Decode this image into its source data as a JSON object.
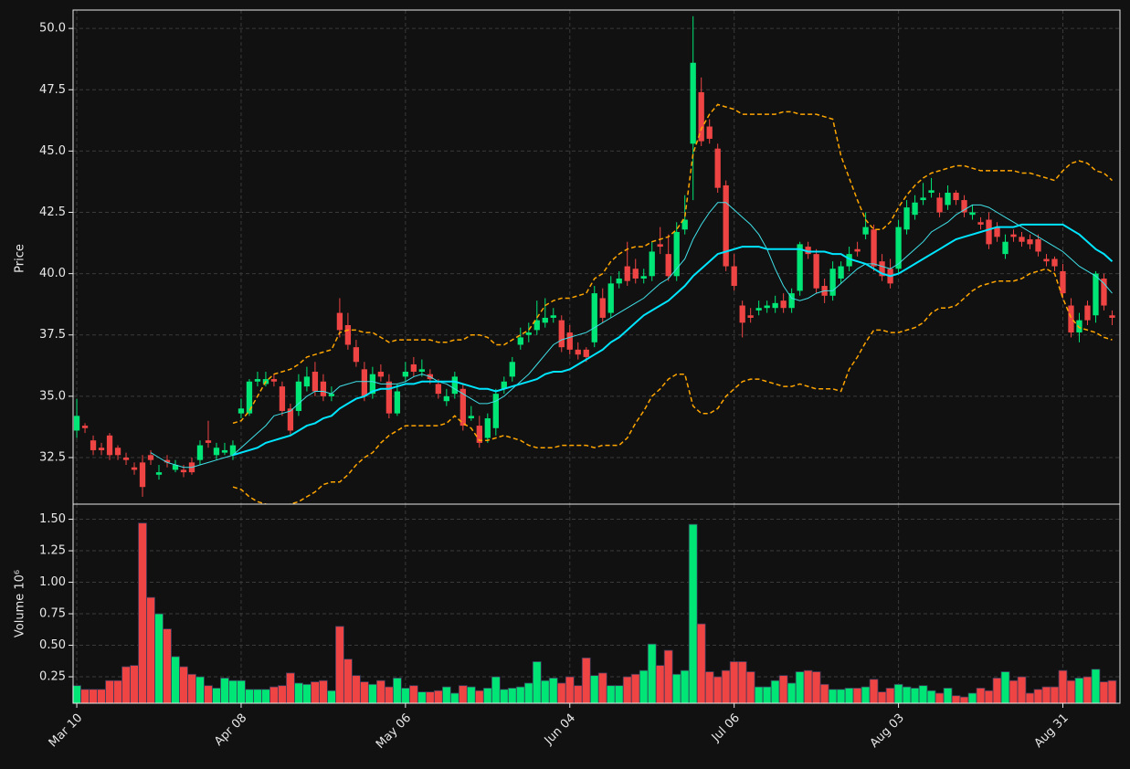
{
  "chart_data": {
    "type": "candlestick",
    "ylabel": "Price",
    "volume_label": "Volume  10⁶",
    "up_color": "#00e676",
    "down_color": "#ef4444",
    "grid": true,
    "categories": [
      "Mar 10",
      null,
      null,
      null,
      null,
      null,
      null,
      null,
      null,
      null,
      null,
      null,
      null,
      null,
      null,
      null,
      null,
      null,
      null,
      null,
      "Apr 08",
      null,
      null,
      null,
      null,
      null,
      null,
      null,
      null,
      null,
      null,
      null,
      null,
      null,
      null,
      null,
      null,
      null,
      null,
      null,
      "May 06",
      null,
      null,
      null,
      null,
      null,
      null,
      null,
      null,
      null,
      null,
      null,
      null,
      null,
      null,
      null,
      null,
      null,
      null,
      null,
      "Jun 04",
      null,
      null,
      null,
      null,
      null,
      null,
      null,
      null,
      null,
      null,
      null,
      null,
      null,
      null,
      null,
      null,
      null,
      null,
      null,
      "Jul 06",
      null,
      null,
      null,
      null,
      null,
      null,
      null,
      null,
      null,
      null,
      null,
      null,
      null,
      null,
      null,
      null,
      null,
      null,
      null,
      "Aug 03",
      null,
      null,
      null,
      null,
      null,
      null,
      null,
      null,
      null,
      null,
      null,
      null,
      null,
      null,
      null,
      null,
      null,
      null,
      null,
      "Aug 31",
      null,
      null,
      null,
      null,
      null,
      null
    ],
    "open": [
      33.6,
      33.8,
      33.2,
      32.9,
      33.4,
      32.9,
      32.5,
      32.1,
      32.3,
      32.6,
      31.8,
      32.4,
      32.0,
      32.0,
      32.3,
      32.4,
      33.2,
      32.6,
      32.7,
      32.6,
      34.3,
      34.3,
      35.6,
      35.5,
      35.7,
      35.4,
      34.5,
      34.4,
      35.4,
      36.0,
      35.6,
      35.0,
      38.4,
      37.9,
      37.0,
      36.1,
      35.1,
      36.0,
      35.6,
      34.3,
      35.8,
      36.3,
      36.0,
      35.9,
      35.5,
      34.8,
      35.1,
      35.3,
      34.1,
      33.8,
      33.3,
      33.7,
      35.3,
      35.8,
      37.1,
      37.5,
      37.7,
      38.0,
      38.2,
      38.1,
      37.6,
      36.9,
      36.9,
      37.2,
      39.0,
      38.4,
      39.6,
      40.3,
      40.2,
      39.8,
      39.9,
      41.2,
      40.8,
      39.9,
      41.8,
      45.3,
      47.4,
      46.0,
      45.1,
      43.6,
      40.3,
      38.7,
      38.3,
      38.5,
      38.6,
      38.6,
      38.9,
      38.6,
      39.3,
      41.1,
      40.8,
      39.5,
      39.1,
      39.8,
      40.3,
      41.0,
      41.6,
      41.8,
      40.5,
      40.2,
      40.2,
      41.8,
      42.4,
      43.0,
      43.3,
      43.1,
      42.8,
      43.3,
      43.0,
      42.4,
      42.1,
      42.2,
      41.9,
      40.8,
      41.6,
      41.5,
      41.4,
      41.4,
      40.6,
      40.6,
      40.1,
      38.7,
      37.6,
      38.7,
      38.3,
      39.8,
      38.3
    ],
    "high": [
      34.9,
      33.9,
      33.4,
      33.1,
      33.5,
      33.0,
      32.7,
      32.3,
      32.6,
      32.8,
      32.2,
      32.6,
      32.4,
      32.2,
      32.5,
      33.2,
      34.0,
      33.1,
      33.1,
      33.2,
      34.9,
      35.7,
      36.0,
      36.0,
      35.9,
      35.6,
      34.7,
      35.9,
      36.2,
      36.4,
      35.9,
      35.4,
      39.0,
      38.4,
      37.3,
      36.4,
      36.2,
      36.3,
      35.9,
      35.5,
      36.4,
      36.6,
      36.5,
      36.1,
      35.7,
      35.3,
      36.0,
      35.5,
      34.6,
      34.2,
      34.3,
      35.3,
      35.8,
      36.6,
      37.8,
      38.0,
      38.9,
      39.0,
      38.6,
      38.3,
      37.9,
      37.2,
      37.0,
      39.5,
      39.4,
      39.9,
      40.1,
      41.3,
      40.6,
      40.2,
      41.3,
      41.9,
      41.6,
      42.1,
      43.2,
      50.5,
      48.0,
      46.3,
      45.3,
      43.8,
      40.8,
      38.9,
      38.6,
      38.9,
      38.9,
      39.1,
      39.2,
      39.4,
      41.3,
      41.3,
      41.0,
      39.8,
      40.5,
      40.5,
      41.1,
      41.3,
      42.5,
      42.0,
      40.8,
      40.6,
      42.2,
      43.0,
      43.2,
      43.7,
      43.9,
      43.3,
      43.6,
      43.4,
      43.2,
      42.8,
      42.3,
      42.5,
      42.1,
      41.6,
      41.8,
      41.7,
      41.6,
      41.6,
      40.8,
      40.7,
      40.4,
      39.0,
      38.4,
      38.9,
      40.1,
      40.0,
      38.5
    ],
    "low": [
      33.3,
      33.5,
      32.6,
      32.6,
      32.4,
      32.4,
      32.2,
      31.8,
      30.9,
      32.2,
      31.6,
      32.1,
      31.9,
      31.7,
      31.8,
      32.2,
      32.9,
      32.4,
      32.6,
      32.4,
      34.1,
      34.2,
      35.4,
      35.4,
      35.4,
      34.2,
      33.4,
      34.2,
      35.2,
      35.0,
      34.8,
      34.8,
      37.4,
      36.9,
      36.2,
      34.8,
      34.9,
      35.6,
      34.1,
      34.2,
      35.6,
      35.8,
      35.8,
      35.5,
      34.9,
      34.6,
      34.9,
      33.6,
      34.0,
      32.9,
      33.1,
      33.4,
      35.1,
      35.6,
      36.9,
      37.2,
      37.5,
      37.8,
      38.0,
      36.8,
      36.7,
      36.5,
      36.4,
      37.0,
      38.0,
      38.2,
      39.4,
      39.5,
      39.6,
      39.6,
      39.7,
      40.8,
      39.7,
      39.7,
      41.6,
      43.0,
      45.2,
      45.3,
      43.3,
      40.1,
      39.3,
      37.4,
      38.0,
      38.3,
      38.4,
      38.4,
      38.4,
      38.4,
      39.1,
      40.6,
      39.2,
      38.8,
      38.9,
      39.6,
      40.1,
      40.7,
      41.4,
      40.1,
      39.7,
      39.4,
      40.0,
      41.6,
      42.2,
      42.8,
      43.1,
      42.3,
      42.6,
      42.8,
      42.3,
      42.2,
      41.8,
      41.0,
      41.3,
      40.6,
      41.3,
      41.1,
      41.0,
      40.7,
      40.3,
      40.1,
      39.0,
      37.4,
      37.2,
      37.9,
      38.0,
      38.5,
      37.9
    ],
    "close": [
      34.2,
      33.7,
      32.8,
      32.8,
      32.6,
      32.6,
      32.4,
      32.0,
      31.3,
      32.4,
      31.9,
      32.3,
      32.2,
      31.9,
      31.9,
      33.0,
      33.1,
      32.9,
      32.8,
      33.0,
      34.5,
      35.6,
      35.7,
      35.7,
      35.6,
      34.4,
      33.6,
      35.6,
      35.8,
      35.2,
      35.0,
      35.1,
      37.7,
      37.1,
      36.4,
      35.0,
      35.9,
      35.8,
      34.3,
      35.2,
      36.0,
      36.0,
      36.1,
      35.7,
      35.1,
      35.0,
      35.8,
      33.8,
      34.2,
      33.1,
      34.1,
      35.1,
      35.6,
      36.4,
      37.4,
      37.6,
      38.1,
      38.2,
      38.3,
      37.0,
      36.9,
      36.7,
      36.6,
      39.2,
      38.2,
      39.6,
      39.8,
      39.7,
      39.8,
      39.9,
      40.9,
      41.1,
      39.9,
      41.7,
      42.2,
      48.6,
      45.4,
      45.5,
      43.5,
      40.3,
      39.5,
      38.0,
      38.2,
      38.6,
      38.7,
      38.8,
      38.6,
      39.2,
      41.2,
      40.8,
      39.4,
      39.1,
      40.2,
      40.3,
      40.8,
      40.9,
      41.9,
      40.3,
      39.9,
      39.6,
      41.9,
      42.7,
      42.9,
      43.1,
      43.4,
      42.5,
      43.3,
      43.0,
      42.5,
      42.5,
      42.0,
      41.2,
      41.5,
      41.3,
      41.5,
      41.3,
      41.2,
      40.9,
      40.5,
      40.3,
      39.2,
      37.6,
      38.1,
      38.1,
      40.0,
      38.7,
      38.2
    ],
    "volume": [
      0.18,
      0.15,
      0.15,
      0.15,
      0.22,
      0.22,
      0.33,
      0.34,
      1.47,
      0.88,
      0.75,
      0.63,
      0.41,
      0.33,
      0.27,
      0.25,
      0.18,
      0.16,
      0.24,
      0.22,
      0.22,
      0.15,
      0.15,
      0.15,
      0.17,
      0.18,
      0.28,
      0.2,
      0.19,
      0.21,
      0.22,
      0.14,
      0.65,
      0.39,
      0.26,
      0.21,
      0.19,
      0.22,
      0.17,
      0.24,
      0.16,
      0.18,
      0.13,
      0.13,
      0.14,
      0.17,
      0.12,
      0.18,
      0.17,
      0.14,
      0.16,
      0.25,
      0.15,
      0.16,
      0.17,
      0.2,
      0.37,
      0.22,
      0.24,
      0.2,
      0.25,
      0.18,
      0.4,
      0.26,
      0.28,
      0.18,
      0.18,
      0.25,
      0.27,
      0.3,
      0.51,
      0.34,
      0.46,
      0.27,
      0.3,
      1.46,
      0.67,
      0.29,
      0.25,
      0.3,
      0.37,
      0.37,
      0.29,
      0.17,
      0.17,
      0.22,
      0.26,
      0.2,
      0.29,
      0.3,
      0.29,
      0.19,
      0.15,
      0.15,
      0.16,
      0.16,
      0.17,
      0.23,
      0.13,
      0.16,
      0.19,
      0.17,
      0.16,
      0.18,
      0.14,
      0.12,
      0.16,
      0.1,
      0.09,
      0.12,
      0.16,
      0.14,
      0.24,
      0.29,
      0.22,
      0.25,
      0.12,
      0.15,
      0.17,
      0.17,
      0.3,
      0.22,
      0.24,
      0.25,
      0.31,
      0.21,
      0.22
    ],
    "ma_lines": [
      {
        "color": "#40e0e8",
        "width": 1,
        "dash": false,
        "values": [
          null,
          null,
          null,
          null,
          null,
          null,
          null,
          null,
          null,
          32.7,
          32.5,
          32.3,
          32.2,
          32.1,
          32.1,
          32.2,
          32.3,
          32.4,
          32.5,
          32.6,
          32.9,
          33.2,
          33.5,
          33.8,
          34.2,
          34.3,
          34.4,
          34.7,
          35.0,
          35.2,
          35.2,
          35.1,
          35.4,
          35.5,
          35.6,
          35.6,
          35.6,
          35.5,
          35.5,
          35.5,
          35.6,
          35.8,
          35.9,
          35.8,
          35.6,
          35.5,
          35.3,
          35.1,
          34.9,
          34.7,
          34.7,
          34.8,
          35.0,
          35.3,
          35.6,
          35.9,
          36.3,
          36.7,
          37.1,
          37.3,
          37.4,
          37.5,
          37.6,
          37.8,
          38.0,
          38.2,
          38.4,
          38.6,
          38.8,
          39.0,
          39.3,
          39.6,
          39.8,
          40.2,
          40.6,
          41.4,
          42.0,
          42.5,
          42.9,
          42.9,
          42.6,
          42.3,
          42.0,
          41.6,
          41.0,
          40.2,
          39.5,
          39.0,
          38.9,
          39.0,
          39.2,
          39.3,
          39.3,
          39.6,
          39.9,
          40.2,
          40.4,
          40.4,
          40.3,
          40.2,
          40.4,
          40.7,
          41.0,
          41.3,
          41.7,
          41.9,
          42.1,
          42.4,
          42.6,
          42.8,
          42.8,
          42.7,
          42.5,
          42.3,
          42.1,
          41.9,
          41.7,
          41.5,
          41.3,
          41.1,
          40.9,
          40.6,
          40.3,
          40.1,
          39.9,
          39.6,
          39.2
        ]
      },
      {
        "color": "#00e5ff",
        "width": 2,
        "dash": false,
        "values": [
          null,
          null,
          null,
          null,
          null,
          null,
          null,
          null,
          null,
          null,
          null,
          null,
          null,
          null,
          null,
          null,
          null,
          null,
          null,
          32.6,
          32.7,
          32.8,
          32.9,
          33.1,
          33.2,
          33.3,
          33.4,
          33.6,
          33.8,
          33.9,
          34.1,
          34.2,
          34.5,
          34.7,
          34.9,
          35.0,
          35.2,
          35.3,
          35.3,
          35.4,
          35.5,
          35.5,
          35.6,
          35.6,
          35.6,
          35.6,
          35.6,
          35.5,
          35.4,
          35.3,
          35.3,
          35.2,
          35.3,
          35.4,
          35.5,
          35.6,
          35.7,
          35.9,
          36.0,
          36.0,
          36.1,
          36.3,
          36.5,
          36.7,
          36.9,
          37.2,
          37.4,
          37.7,
          38.0,
          38.3,
          38.5,
          38.7,
          38.9,
          39.2,
          39.5,
          39.9,
          40.2,
          40.5,
          40.8,
          40.9,
          41.0,
          41.1,
          41.1,
          41.1,
          41.0,
          41.0,
          41.0,
          41.0,
          41.0,
          40.9,
          40.9,
          40.9,
          40.8,
          40.8,
          40.6,
          40.5,
          40.4,
          40.2,
          40.0,
          39.9,
          40.0,
          40.2,
          40.4,
          40.6,
          40.8,
          41.0,
          41.2,
          41.4,
          41.5,
          41.6,
          41.7,
          41.8,
          41.9,
          41.9,
          41.9,
          42.0,
          42.0,
          42.0,
          42.0,
          42.0,
          42.0,
          41.8,
          41.6,
          41.3,
          41.0,
          40.8,
          40.5
        ]
      },
      {
        "color": "#ffa500",
        "width": 1.5,
        "dash": true,
        "values": [
          null,
          null,
          null,
          null,
          null,
          null,
          null,
          null,
          null,
          null,
          null,
          null,
          null,
          null,
          null,
          null,
          null,
          null,
          null,
          33.9,
          34.0,
          34.4,
          35.0,
          35.6,
          35.9,
          36.0,
          36.1,
          36.3,
          36.6,
          36.7,
          36.8,
          36.9,
          37.6,
          37.7,
          37.7,
          37.6,
          37.6,
          37.4,
          37.2,
          37.3,
          37.3,
          37.3,
          37.3,
          37.3,
          37.2,
          37.2,
          37.3,
          37.3,
          37.5,
          37.5,
          37.4,
          37.1,
          37.1,
          37.3,
          37.5,
          37.7,
          38.2,
          38.7,
          38.9,
          39.0,
          39.0,
          39.1,
          39.2,
          39.8,
          40.0,
          40.5,
          40.8,
          41.0,
          41.1,
          41.1,
          41.3,
          41.4,
          41.5,
          41.8,
          42.3,
          44.9,
          45.9,
          46.5,
          46.9,
          46.8,
          46.7,
          46.5,
          46.5,
          46.5,
          46.5,
          46.5,
          46.6,
          46.6,
          46.5,
          46.5,
          46.5,
          46.4,
          46.3,
          44.8,
          43.9,
          43.0,
          42.2,
          41.8,
          41.8,
          42.1,
          42.7,
          43.2,
          43.6,
          43.9,
          44.1,
          44.2,
          44.3,
          44.4,
          44.4,
          44.3,
          44.2,
          44.2,
          44.2,
          44.2,
          44.2,
          44.1,
          44.1,
          44.0,
          43.9,
          43.8,
          44.2,
          44.5,
          44.6,
          44.5,
          44.2,
          44.1,
          43.8
        ]
      },
      {
        "color": "#ffa500",
        "width": 1.5,
        "dash": true,
        "values": [
          null,
          null,
          null,
          null,
          null,
          null,
          null,
          null,
          null,
          null,
          null,
          null,
          null,
          null,
          null,
          null,
          null,
          null,
          null,
          31.3,
          31.2,
          30.9,
          30.7,
          30.6,
          30.5,
          30.5,
          30.6,
          30.7,
          30.9,
          31.1,
          31.4,
          31.5,
          31.5,
          31.8,
          32.2,
          32.5,
          32.7,
          33.1,
          33.4,
          33.6,
          33.8,
          33.8,
          33.8,
          33.8,
          33.8,
          33.9,
          34.2,
          33.9,
          33.7,
          33.2,
          33.2,
          33.3,
          33.4,
          33.3,
          33.2,
          33.0,
          32.9,
          32.9,
          32.9,
          33.0,
          33.0,
          33.0,
          33.0,
          32.9,
          33.0,
          33.0,
          33.0,
          33.3,
          33.9,
          34.4,
          35.0,
          35.3,
          35.7,
          35.9,
          35.9,
          34.6,
          34.3,
          34.3,
          34.5,
          35.0,
          35.3,
          35.6,
          35.7,
          35.7,
          35.6,
          35.5,
          35.4,
          35.4,
          35.5,
          35.4,
          35.3,
          35.3,
          35.3,
          35.2,
          36.1,
          36.6,
          37.2,
          37.7,
          37.7,
          37.6,
          37.6,
          37.7,
          37.8,
          38.0,
          38.4,
          38.6,
          38.6,
          38.7,
          39.0,
          39.3,
          39.5,
          39.6,
          39.7,
          39.7,
          39.7,
          39.8,
          40.0,
          40.1,
          40.2,
          40.0,
          39.0,
          38.2,
          37.8,
          37.7,
          37.6,
          37.4,
          37.3
        ]
      }
    ],
    "ylim": [
      30.6,
      50.75
    ],
    "yticks": [
      32.5,
      {
        "value": 35,
        "label": "35.0"
      },
      37.5,
      {
        "value": 40,
        "label": "40.0"
      },
      42.5,
      {
        "value": 45,
        "label": "45.0"
      },
      47.5,
      {
        "value": 50,
        "label": "50.0"
      }
    ],
    "volume_ylim": [
      0.04,
      1.62
    ],
    "volume_yticks": [
      0.25,
      {
        "value": 0.5,
        "label": "0.50"
      },
      0.75,
      {
        "value": 1,
        "label": "1.00"
      },
      1.25,
      {
        "value": 1.5,
        "label": "1.50"
      }
    ]
  }
}
